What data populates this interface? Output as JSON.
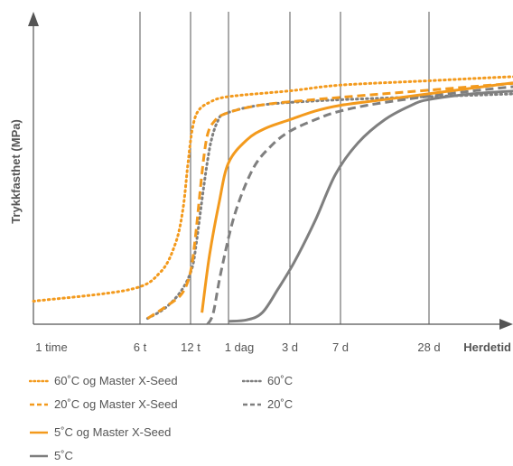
{
  "chart_data": {
    "type": "line",
    "xlabel": "Herdetid",
    "ylabel": "Trykkfasthet (MPa)",
    "x_ticks": [
      "1 time",
      "6 t",
      "12 t",
      "1 dag",
      "3 d",
      "7 d",
      "28 d"
    ],
    "y_range": [
      0,
      100
    ],
    "grid_x": true,
    "legend_position": "bottom",
    "series": [
      {
        "name": "60˚C og Master X-Seed",
        "color": "#F39A1D",
        "dash": "dotted",
        "points": [
          [
            0.0,
            8
          ],
          [
            0.9,
            12
          ],
          [
            1.4,
            18
          ],
          [
            1.7,
            28
          ],
          [
            1.85,
            40
          ],
          [
            1.95,
            56
          ],
          [
            2.05,
            68
          ],
          [
            2.2,
            74
          ],
          [
            2.5,
            77
          ],
          [
            3.0,
            79
          ],
          [
            4.0,
            81
          ],
          [
            5.0,
            83
          ],
          [
            6.0,
            84.5
          ],
          [
            7.0,
            86
          ],
          [
            8.0,
            87
          ]
        ]
      },
      {
        "name": "60˚C",
        "color": "#7F7F7F",
        "dash": "dotted",
        "points": [
          [
            1.15,
            2
          ],
          [
            1.45,
            5
          ],
          [
            1.7,
            9
          ],
          [
            1.9,
            14
          ],
          [
            2.05,
            20
          ],
          [
            2.15,
            28
          ],
          [
            2.25,
            38
          ],
          [
            2.35,
            48
          ],
          [
            2.45,
            57
          ],
          [
            2.55,
            64
          ],
          [
            2.7,
            70
          ],
          [
            2.9,
            73
          ],
          [
            3.5,
            76
          ],
          [
            4.5,
            77.5
          ],
          [
            5.5,
            78.5
          ],
          [
            6.5,
            79.5
          ],
          [
            8.0,
            81
          ]
        ]
      },
      {
        "name": "20˚C og Master X-Seed",
        "color": "#F39A1D",
        "dash": "dashed",
        "points": [
          [
            1.15,
            2
          ],
          [
            1.5,
            6
          ],
          [
            1.8,
            10
          ],
          [
            1.95,
            15
          ],
          [
            2.05,
            22
          ],
          [
            2.15,
            33
          ],
          [
            2.25,
            46
          ],
          [
            2.35,
            58
          ],
          [
            2.45,
            66
          ],
          [
            2.6,
            70
          ],
          [
            2.9,
            73
          ],
          [
            3.5,
            76
          ],
          [
            4.5,
            78
          ],
          [
            5.5,
            80
          ],
          [
            6.5,
            82.5
          ],
          [
            7.5,
            85
          ],
          [
            8.0,
            87
          ]
        ]
      },
      {
        "name": "20˚C",
        "color": "#7F7F7F",
        "dash": "dashed",
        "points": [
          [
            2.45,
            0
          ],
          [
            2.6,
            4
          ],
          [
            2.8,
            18
          ],
          [
            3.1,
            38
          ],
          [
            3.4,
            54
          ],
          [
            3.7,
            62
          ],
          [
            4.0,
            67
          ],
          [
            4.5,
            71
          ],
          [
            5.0,
            74
          ],
          [
            5.5,
            77
          ],
          [
            6.5,
            81
          ],
          [
            7.5,
            84
          ],
          [
            8.0,
            85
          ]
        ]
      },
      {
        "name": "5˚C og Master X-Seed",
        "color": "#F39A1D",
        "dash": "solid",
        "points": [
          [
            2.3,
            4
          ],
          [
            2.5,
            24
          ],
          [
            2.75,
            42
          ],
          [
            3.0,
            56
          ],
          [
            3.3,
            64
          ],
          [
            3.6,
            68
          ],
          [
            4.0,
            71
          ],
          [
            4.5,
            74
          ],
          [
            5.0,
            76
          ],
          [
            5.5,
            78
          ],
          [
            6.5,
            82
          ],
          [
            7.5,
            86
          ],
          [
            8.0,
            88
          ]
        ]
      },
      {
        "name": "5˚C",
        "color": "#7F7F7F",
        "dash": "solid",
        "points": [
          [
            3.0,
            1
          ],
          [
            3.3,
            1.5
          ],
          [
            3.55,
            4
          ],
          [
            3.8,
            12
          ],
          [
            4.1,
            22
          ],
          [
            4.5,
            36
          ],
          [
            4.9,
            52
          ],
          [
            5.2,
            63
          ],
          [
            5.5,
            71
          ],
          [
            5.8,
            76
          ],
          [
            6.0,
            78
          ],
          [
            6.5,
            80
          ],
          [
            7.0,
            81
          ],
          [
            7.5,
            81.5
          ],
          [
            8.0,
            82
          ]
        ]
      }
    ]
  }
}
